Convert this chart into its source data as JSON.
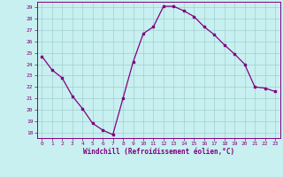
{
  "x": [
    0,
    1,
    2,
    3,
    4,
    5,
    6,
    7,
    8,
    9,
    10,
    11,
    12,
    13,
    14,
    15,
    16,
    17,
    18,
    19,
    20,
    21,
    22,
    23
  ],
  "y": [
    24.7,
    23.5,
    22.8,
    21.2,
    20.1,
    18.8,
    18.2,
    17.8,
    21.0,
    24.2,
    26.7,
    27.3,
    29.1,
    29.1,
    28.7,
    28.2,
    27.3,
    26.6,
    25.7,
    24.9,
    24.0,
    22.0,
    21.9,
    21.6
  ],
  "line_color": "#800080",
  "marker": "s",
  "markersize": 2,
  "linewidth": 0.9,
  "background_color": "#c8f0f0",
  "grid_color": "#a0d0d0",
  "xlabel": "Windchill (Refroidissement éolien,°C)",
  "xlabel_color": "#800080",
  "tick_color": "#800080",
  "ylim": [
    17.5,
    29.5
  ],
  "yticks": [
    18,
    19,
    20,
    21,
    22,
    23,
    24,
    25,
    26,
    27,
    28,
    29
  ],
  "xticks": [
    0,
    1,
    2,
    3,
    4,
    5,
    6,
    7,
    8,
    9,
    10,
    11,
    12,
    13,
    14,
    15,
    16,
    17,
    18,
    19,
    20,
    21,
    22,
    23
  ],
  "figsize": [
    3.2,
    2.0
  ],
  "dpi": 100
}
